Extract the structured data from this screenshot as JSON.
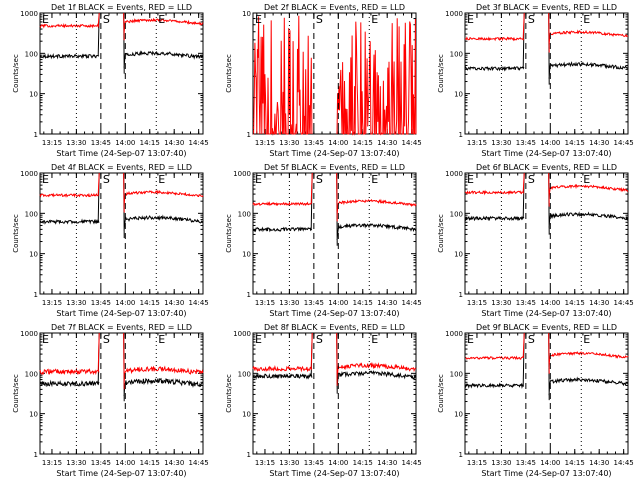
{
  "colors": {
    "events": "#000000",
    "lld": "#ff0000",
    "axis": "#000000",
    "background": "#ffffff"
  },
  "chart_data": [
    {
      "type": "line",
      "title": "Det 1f BLACK = Events, RED = LLD",
      "xlabel": "Start Time (24-Sep-07 13:07:40)",
      "ylabel": "Counts/sec",
      "xlim": [
        "13:07:40",
        "14:47:40"
      ],
      "ylim": [
        1,
        1000
      ],
      "yscale": "log",
      "xticks": [
        "13:15",
        "13:30",
        "13:45",
        "14:00",
        "14:15",
        "14:30",
        "14:45"
      ],
      "yticks": [
        "1",
        "10",
        "100",
        "1000"
      ],
      "markers": [
        {
          "time": "13:07:40",
          "label": "E",
          "style": "dotted"
        },
        {
          "time": "13:30",
          "label": "",
          "style": "dotted"
        },
        {
          "time": "13:45",
          "label": "S",
          "style": "dashed"
        },
        {
          "time": "14:00",
          "label": "",
          "style": "dashed"
        },
        {
          "time": "14:19",
          "label": "E",
          "style": "dotted"
        }
      ],
      "gap": [
        "13:44",
        "13:59"
      ],
      "series": [
        {
          "name": "Events",
          "before": 85,
          "after": 90,
          "noise": 0.04
        },
        {
          "name": "LLD",
          "before": 480,
          "after": 600,
          "noise": 0.03
        }
      ]
    },
    {
      "type": "line",
      "title": "Det 2f BLACK = Events, RED = LLD",
      "xlabel": "Start Time (24-Sep-07 13:07:40)",
      "ylabel": "Counts/sec",
      "xlim": [
        "13:07:40",
        "14:47:40"
      ],
      "ylim": [
        1,
        10
      ],
      "yscale": "log",
      "xticks": [
        "13:15",
        "13:30",
        "13:45",
        "14:00",
        "14:15",
        "14:30",
        "14:45"
      ],
      "yticks": [
        "1",
        "10"
      ],
      "markers": [
        {
          "time": "13:07:40",
          "label": "E",
          "style": "dotted"
        },
        {
          "time": "13:30",
          "label": "",
          "style": "dotted"
        },
        {
          "time": "13:45",
          "label": "S",
          "style": "dashed"
        },
        {
          "time": "14:00",
          "label": "",
          "style": "dashed"
        },
        {
          "time": "14:19",
          "label": "E",
          "style": "dotted"
        }
      ],
      "gap": [
        "13:44",
        "13:59"
      ],
      "series": [
        {
          "name": "LLD",
          "before": 2,
          "after": 2,
          "noise": 1.0
        }
      ]
    },
    {
      "type": "line",
      "title": "Det 3f BLACK = Events, RED = LLD",
      "xlabel": "Start Time (24-Sep-07 13:07:40)",
      "ylabel": "Counts/sec",
      "xlim": [
        "13:07:40",
        "14:47:40"
      ],
      "ylim": [
        1,
        1000
      ],
      "yscale": "log",
      "xticks": [
        "13:15",
        "13:30",
        "13:45",
        "14:00",
        "14:15",
        "14:30",
        "14:45"
      ],
      "yticks": [
        "1",
        "10",
        "100",
        "1000"
      ],
      "markers": [
        {
          "time": "13:07:40",
          "label": "E",
          "style": "dotted"
        },
        {
          "time": "13:30",
          "label": "",
          "style": "dotted"
        },
        {
          "time": "13:45",
          "label": "S",
          "style": "dashed"
        },
        {
          "time": "14:00",
          "label": "",
          "style": "dashed"
        },
        {
          "time": "14:19",
          "label": "E",
          "style": "dotted"
        }
      ],
      "gap": [
        "13:44",
        "13:59"
      ],
      "series": [
        {
          "name": "Events",
          "before": 42,
          "after": 48,
          "noise": 0.04
        },
        {
          "name": "LLD",
          "before": 230,
          "after": 300,
          "noise": 0.03
        }
      ]
    },
    {
      "type": "line",
      "title": "Det 4f BLACK = Events, RED = LLD",
      "xlabel": "Start Time (24-Sep-07 13:07:40)",
      "ylabel": "Counts/sec",
      "xlim": [
        "13:07:40",
        "14:47:40"
      ],
      "ylim": [
        1,
        1000
      ],
      "yscale": "log",
      "xticks": [
        "13:15",
        "13:30",
        "13:45",
        "14:00",
        "14:15",
        "14:30",
        "14:45"
      ],
      "yticks": [
        "1",
        "10",
        "100",
        "1000"
      ],
      "markers": [
        {
          "time": "13:07:40",
          "label": "E",
          "style": "dotted"
        },
        {
          "time": "13:30",
          "label": "",
          "style": "dotted"
        },
        {
          "time": "13:45",
          "label": "S",
          "style": "dashed"
        },
        {
          "time": "14:00",
          "label": "",
          "style": "dashed"
        },
        {
          "time": "14:19",
          "label": "E",
          "style": "dotted"
        }
      ],
      "gap": [
        "13:44",
        "13:59"
      ],
      "series": [
        {
          "name": "Events",
          "before": 62,
          "after": 70,
          "noise": 0.04
        },
        {
          "name": "LLD",
          "before": 280,
          "after": 300,
          "noise": 0.03
        }
      ]
    },
    {
      "type": "line",
      "title": "Det 5f BLACK = Events, RED = LLD",
      "xlabel": "Start Time (24-Sep-07 13:07:40)",
      "ylabel": "Counts/sec",
      "xlim": [
        "13:07:40",
        "14:47:40"
      ],
      "ylim": [
        1,
        1000
      ],
      "yscale": "log",
      "xticks": [
        "13:15",
        "13:30",
        "13:45",
        "14:00",
        "14:15",
        "14:30",
        "14:45"
      ],
      "yticks": [
        "1",
        "10",
        "100",
        "1000"
      ],
      "markers": [
        {
          "time": "13:07:40",
          "label": "E",
          "style": "dotted"
        },
        {
          "time": "13:30",
          "label": "",
          "style": "dotted"
        },
        {
          "time": "13:45",
          "label": "S",
          "style": "dashed"
        },
        {
          "time": "14:00",
          "label": "",
          "style": "dashed"
        },
        {
          "time": "14:19",
          "label": "E",
          "style": "dotted"
        }
      ],
      "gap": [
        "13:44",
        "13:59"
      ],
      "series": [
        {
          "name": "Events",
          "before": 40,
          "after": 45,
          "noise": 0.04
        },
        {
          "name": "LLD",
          "before": 170,
          "after": 180,
          "noise": 0.03
        }
      ]
    },
    {
      "type": "line",
      "title": "Det 6f BLACK = Events, RED = LLD",
      "xlabel": "Start Time (24-Sep-07 13:07:40)",
      "ylabel": "Counts/sec",
      "xlim": [
        "13:07:40",
        "14:47:40"
      ],
      "ylim": [
        1,
        1000
      ],
      "yscale": "log",
      "xticks": [
        "13:15",
        "13:30",
        "13:45",
        "14:00",
        "14:15",
        "14:30",
        "14:45"
      ],
      "yticks": [
        "1",
        "10",
        "100",
        "1000"
      ],
      "markers": [
        {
          "time": "13:07:40",
          "label": "E",
          "style": "dotted"
        },
        {
          "time": "13:30",
          "label": "",
          "style": "dotted"
        },
        {
          "time": "13:45",
          "label": "S",
          "style": "dashed"
        },
        {
          "time": "14:00",
          "label": "",
          "style": "dashed"
        },
        {
          "time": "14:19",
          "label": "E",
          "style": "dotted"
        }
      ],
      "gap": [
        "13:44",
        "13:59"
      ],
      "series": [
        {
          "name": "Events",
          "before": 75,
          "after": 85,
          "noise": 0.04
        },
        {
          "name": "LLD",
          "before": 330,
          "after": 420,
          "noise": 0.03
        }
      ]
    },
    {
      "type": "line",
      "title": "Det 7f BLACK = Events, RED = LLD",
      "xlabel": "Start Time (24-Sep-07 13:07:40)",
      "ylabel": "Counts/sec",
      "xlim": [
        "13:07:40",
        "14:47:40"
      ],
      "ylim": [
        1,
        1000
      ],
      "yscale": "log",
      "xticks": [
        "13:15",
        "13:30",
        "13:45",
        "14:00",
        "14:15",
        "14:30",
        "14:45"
      ],
      "yticks": [
        "1",
        "10",
        "100",
        "1000"
      ],
      "markers": [
        {
          "time": "13:07:40",
          "label": "E",
          "style": "dotted"
        },
        {
          "time": "13:30",
          "label": "",
          "style": "dotted"
        },
        {
          "time": "13:45",
          "label": "S",
          "style": "dashed"
        },
        {
          "time": "14:00",
          "label": "",
          "style": "dashed"
        },
        {
          "time": "14:19",
          "label": "E",
          "style": "dotted"
        }
      ],
      "gap": [
        "13:44",
        "13:59"
      ],
      "series": [
        {
          "name": "Events",
          "before": 55,
          "after": 58,
          "noise": 0.06
        },
        {
          "name": "LLD",
          "before": 110,
          "after": 115,
          "noise": 0.06
        }
      ]
    },
    {
      "type": "line",
      "title": "Det 8f BLACK = Events, RED = LLD",
      "xlabel": "Start Time (24-Sep-07 13:07:40)",
      "ylabel": "Counts/sec",
      "xlim": [
        "13:07:40",
        "14:47:40"
      ],
      "ylim": [
        1,
        1000
      ],
      "yscale": "log",
      "xticks": [
        "13:15",
        "13:30",
        "13:45",
        "14:00",
        "14:15",
        "14:30",
        "14:45"
      ],
      "yticks": [
        "1",
        "10",
        "100",
        "1000"
      ],
      "markers": [
        {
          "time": "13:07:40",
          "label": "E",
          "style": "dotted"
        },
        {
          "time": "13:30",
          "label": "",
          "style": "dotted"
        },
        {
          "time": "13:45",
          "label": "S",
          "style": "dashed"
        },
        {
          "time": "14:00",
          "label": "",
          "style": "dashed"
        },
        {
          "time": "14:19",
          "label": "E",
          "style": "dotted"
        }
      ],
      "gap": [
        "13:44",
        "13:59"
      ],
      "series": [
        {
          "name": "Events",
          "before": 85,
          "after": 90,
          "noise": 0.05
        },
        {
          "name": "LLD",
          "before": 130,
          "after": 140,
          "noise": 0.05
        }
      ]
    },
    {
      "type": "line",
      "title": "Det 9f BLACK = Events, RED = LLD",
      "xlabel": "Start Time (24-Sep-07 13:07:40)",
      "ylabel": "Counts/sec",
      "xlim": [
        "13:07:40",
        "14:47:40"
      ],
      "ylim": [
        1,
        1000
      ],
      "yscale": "log",
      "xticks": [
        "13:15",
        "13:30",
        "13:45",
        "14:00",
        "14:15",
        "14:30",
        "14:45"
      ],
      "yticks": [
        "1",
        "10",
        "100",
        "1000"
      ],
      "markers": [
        {
          "time": "13:07:40",
          "label": "E",
          "style": "dotted"
        },
        {
          "time": "13:30",
          "label": "",
          "style": "dotted"
        },
        {
          "time": "13:45",
          "label": "S",
          "style": "dashed"
        },
        {
          "time": "14:00",
          "label": "",
          "style": "dashed"
        },
        {
          "time": "14:19",
          "label": "E",
          "style": "dotted"
        }
      ],
      "gap": [
        "13:44",
        "13:59"
      ],
      "series": [
        {
          "name": "Events",
          "before": 50,
          "after": 62,
          "noise": 0.04
        },
        {
          "name": "LLD",
          "before": 240,
          "after": 280,
          "noise": 0.03
        }
      ]
    }
  ]
}
